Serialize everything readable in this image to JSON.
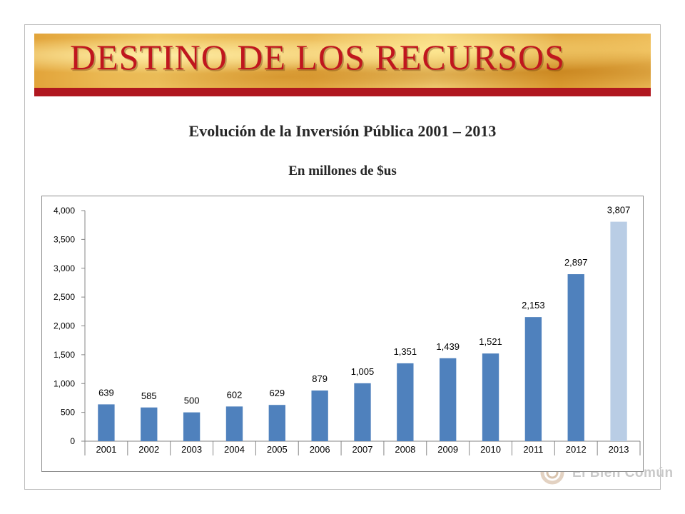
{
  "slide": {
    "title": "DESTINO DE LOS RECURSOS",
    "colors": {
      "title_red": "#c0161e",
      "banner_bar": "#b0171f"
    }
  },
  "watermark": {
    "text": "El Bien Común"
  },
  "chart_data": {
    "type": "bar",
    "title": "Evolución de la Inversión Pública 2001 – 2013",
    "subtitle": "En millones de $us",
    "categories": [
      "2001",
      "2002",
      "2003",
      "2004",
      "2005",
      "2006",
      "2007",
      "2008",
      "2009",
      "2010",
      "2011",
      "2012",
      "2013"
    ],
    "values": [
      639,
      585,
      500,
      602,
      629,
      879,
      1005,
      1351,
      1439,
      1521,
      2153,
      2897,
      3807
    ],
    "value_labels": [
      "639",
      "585",
      "500",
      "602",
      "629",
      "879",
      "1,005",
      "1,351",
      "1,439",
      "1,521",
      "2,153",
      "2,897",
      "3,807"
    ],
    "ylim": [
      0,
      4000
    ],
    "yticks": [
      0,
      500,
      1000,
      1500,
      2000,
      2500,
      3000,
      3500,
      4000
    ],
    "ytick_labels": [
      "0",
      "500",
      "1,000",
      "1,500",
      "2,000",
      "2,500",
      "3,000",
      "3,500",
      "4,000"
    ],
    "grid": false,
    "colors": {
      "bar": "#4f81bd",
      "bar_highlight": "#b9cde5"
    },
    "highlight_index": 12
  }
}
